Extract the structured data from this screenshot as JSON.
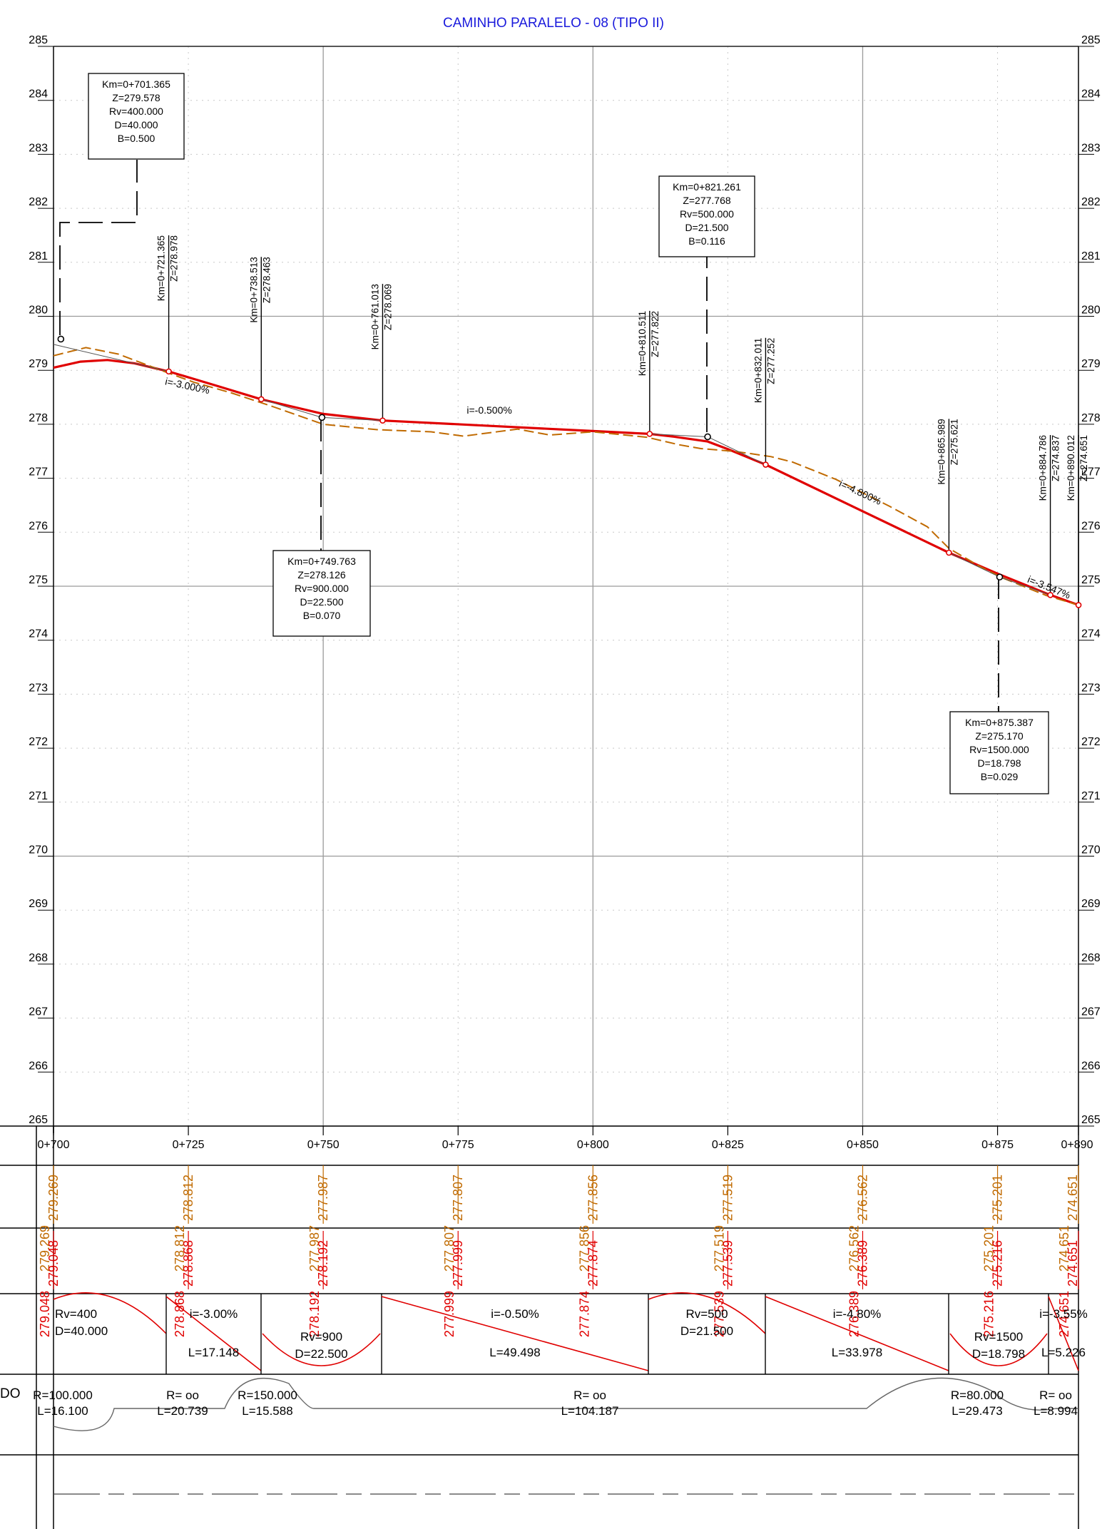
{
  "chart_data": {
    "type": "line",
    "title": "CAMINHO PARALELO - 08 (TIPO II)",
    "xlim": [
      700,
      890
    ],
    "ylim": [
      265,
      285
    ],
    "grid": true,
    "y_ticks": [
      "285",
      "284",
      "283",
      "282",
      "281",
      "280",
      "279",
      "278",
      "277",
      "276",
      "275",
      "274",
      "273",
      "272",
      "271",
      "270",
      "269",
      "268",
      "267",
      "266",
      "265"
    ],
    "x_ticks": [
      "0+700",
      "0+725",
      "0+750",
      "0+775",
      "0+800",
      "0+825",
      "0+850",
      "0+875",
      "0+890"
    ],
    "series": [
      {
        "line_color": "#e00000",
        "x": [
          700,
          705,
          710,
          715,
          721.365,
          730,
          738.513,
          750,
          761.013,
          780,
          800,
          810.511,
          815,
          821.261,
          825,
          832.011,
          850,
          865.989,
          875.387,
          884.786,
          890
        ],
        "y": [
          279.048,
          279.16,
          279.19,
          279.13,
          278.978,
          278.72,
          278.463,
          278.192,
          278.069,
          277.975,
          277.874,
          277.822,
          277.77,
          277.68,
          277.539,
          277.252,
          276.389,
          275.621,
          275.216,
          274.837,
          274.651
        ]
      },
      {
        "line_color": "#c06a00",
        "dashed": true,
        "x": [
          700,
          706,
          712,
          721,
          726,
          733,
          740,
          750,
          760,
          770,
          776,
          786,
          792,
          800,
          810,
          816,
          820,
          826,
          829,
          833,
          837,
          845,
          855,
          862,
          866,
          872,
          876,
          884,
          890
        ],
        "y": [
          279.269,
          279.42,
          279.3,
          278.96,
          278.78,
          278.58,
          278.35,
          278.0,
          277.9,
          277.86,
          277.78,
          277.91,
          277.8,
          277.86,
          277.76,
          277.62,
          277.55,
          277.5,
          277.46,
          277.4,
          277.3,
          276.98,
          276.48,
          276.1,
          275.7,
          275.35,
          275.15,
          274.83,
          274.65
        ]
      }
    ],
    "grade_labels": [
      {
        "text": "i=-3.000%",
        "x": 724.7,
        "y": 278.65,
        "rot": 12
      },
      {
        "text": "i=-0.500%",
        "x": 780.8,
        "y": 278.2,
        "rot": 0
      },
      {
        "text": "i=-4.800%",
        "x": 849.3,
        "y": 276.68,
        "rot": 25
      },
      {
        "text": "i=-3.547%",
        "x": 884.3,
        "y": 274.92,
        "rot": 22
      }
    ],
    "vertical_labels": [
      {
        "km": "Km=0+721.365",
        "z": "Z=278.978",
        "x": 721.365,
        "y": 278.978,
        "top": 281.5
      },
      {
        "km": "Km=0+738.513",
        "z": "Z=278.463",
        "x": 738.513,
        "y": 278.463,
        "top": 281.1
      },
      {
        "km": "Km=0+761.013",
        "z": "Z=278.069",
        "x": 761.013,
        "y": 278.069,
        "top": 280.6
      },
      {
        "km": "Km=0+810.511",
        "z": "Z=277.822",
        "x": 810.511,
        "y": 277.822,
        "top": 280.1
      },
      {
        "km": "Km=0+832.011",
        "z": "Z=277.252",
        "x": 832.011,
        "y": 277.252,
        "top": 279.6
      },
      {
        "km": "Km=0+865.989",
        "z": "Z=275.621",
        "x": 865.989,
        "y": 275.621,
        "top": 278.1
      },
      {
        "km": "Km=0+884.786",
        "z": "Z=274.837",
        "x": 884.786,
        "y": 274.837,
        "top": 277.8
      },
      {
        "km": "Km=0+890.012",
        "z": "Z=274.651",
        "x": 890.012,
        "y": 274.651,
        "top": 277.8
      }
    ],
    "pvi": [
      {
        "x": 701.365,
        "y": 279.578,
        "lines": [
          "Km=0+701.365",
          "Z=279.578",
          "Rv=400.000",
          "D=40.000",
          "B=0.500"
        ]
      },
      {
        "x": 749.763,
        "y": 278.126,
        "lines": [
          "Km=0+749.763",
          "Z=278.126",
          "Rv=900.000",
          "D=22.500",
          "B=0.070"
        ]
      },
      {
        "x": 821.261,
        "y": 277.768,
        "lines": [
          "Km=0+821.261",
          "Z=277.768",
          "Rv=500.000",
          "D=21.500",
          "B=0.116"
        ]
      },
      {
        "x": 875.387,
        "y": 275.17,
        "lines": [
          "Km=0+875.387",
          "Z=275.170",
          "Rv=1500.000",
          "D=18.798",
          "B=0.029"
        ]
      }
    ]
  },
  "table": {
    "stations_x": [
      700,
      725,
      750,
      775,
      800,
      825,
      850,
      875,
      890
    ],
    "terrain_elevations": [
      "279.269",
      "278.812",
      "277.987",
      "277.807",
      "277.856",
      "277.519",
      "276.562",
      "275.201",
      "274.651"
    ],
    "grade_elevations": [
      "279.048",
      "278.868",
      "278.192",
      "277.999",
      "277.874",
      "277.539",
      "276.389",
      "275.216",
      "274.651"
    ],
    "vertical_band": [
      {
        "l1": "Rv=400",
        "l2": "D=40.000"
      },
      {
        "l1": "i=-3.00%",
        "l2": "L=17.148"
      },
      {
        "l1": "Rv=900",
        "l2": "D=22.500"
      },
      {
        "l1": "i=-0.50%",
        "l2": "L=49.498"
      },
      {
        "l1": "Rv=500",
        "l2": "D=21.500"
      },
      {
        "l1": "i=-4.80%",
        "l2": "L=33.978"
      },
      {
        "l1": "Rv=1500",
        "l2": "D=18.798"
      },
      {
        "l1": "i=-3.55%",
        "l2": "L=5.226"
      }
    ],
    "horizontal_band": [
      {
        "l1": "R=100.000",
        "l2": "L=16.100"
      },
      {
        "l1": "R= oo",
        "l2": "L=20.739"
      },
      {
        "l1": "R=150.000",
        "l2": "L=15.588"
      },
      {
        "l1": "R= oo",
        "l2": "L=104.187"
      },
      {
        "l1": "R=80.000",
        "l2": "L=29.473"
      },
      {
        "l1": "R= oo",
        "l2": "L=8.994"
      }
    ],
    "row_label_partial": "DO"
  }
}
